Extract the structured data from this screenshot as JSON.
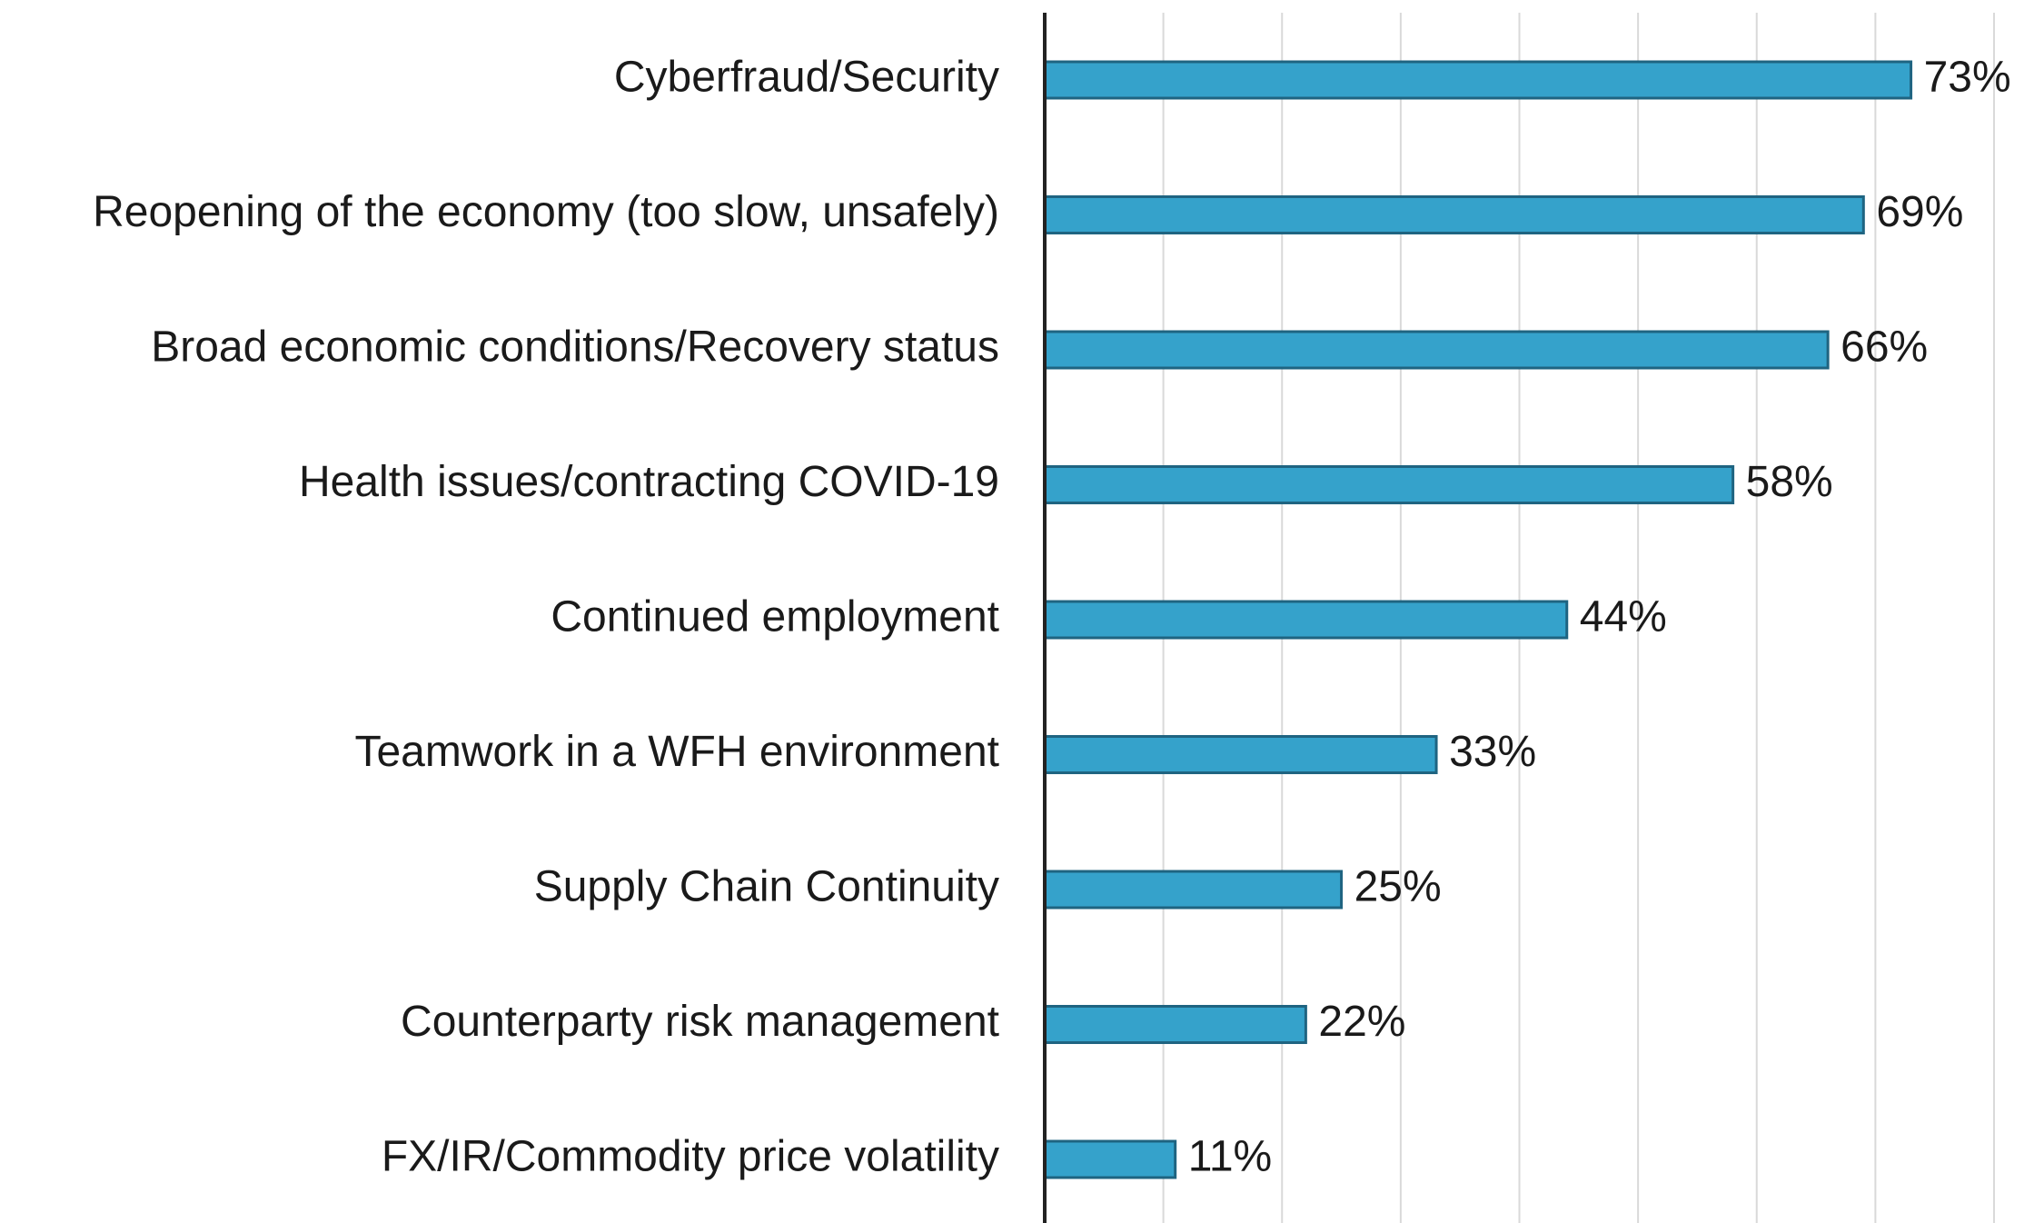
{
  "chart_data": {
    "type": "bar",
    "orientation": "horizontal",
    "categories": [
      "Cyberfraud/Security",
      "Reopening of the economy (too slow, unsafely)",
      "Broad economic conditions/Recovery status",
      "Health issues/contracting COVID-19",
      "Continued employment",
      "Teamwork in a WFH environment",
      "Supply Chain Continuity",
      "Counterparty risk management",
      "FX/IR/Commodity price volatility"
    ],
    "values": [
      73,
      69,
      66,
      58,
      44,
      33,
      25,
      22,
      11
    ],
    "value_labels": [
      "73%",
      "69%",
      "66%",
      "58%",
      "44%",
      "33%",
      "25%",
      "22%",
      "11%"
    ],
    "color": "#35a2cb",
    "xlim": [
      0,
      80
    ],
    "xticks": [
      0,
      10,
      20,
      30,
      40,
      50,
      60,
      70,
      80
    ],
    "grid": true
  }
}
